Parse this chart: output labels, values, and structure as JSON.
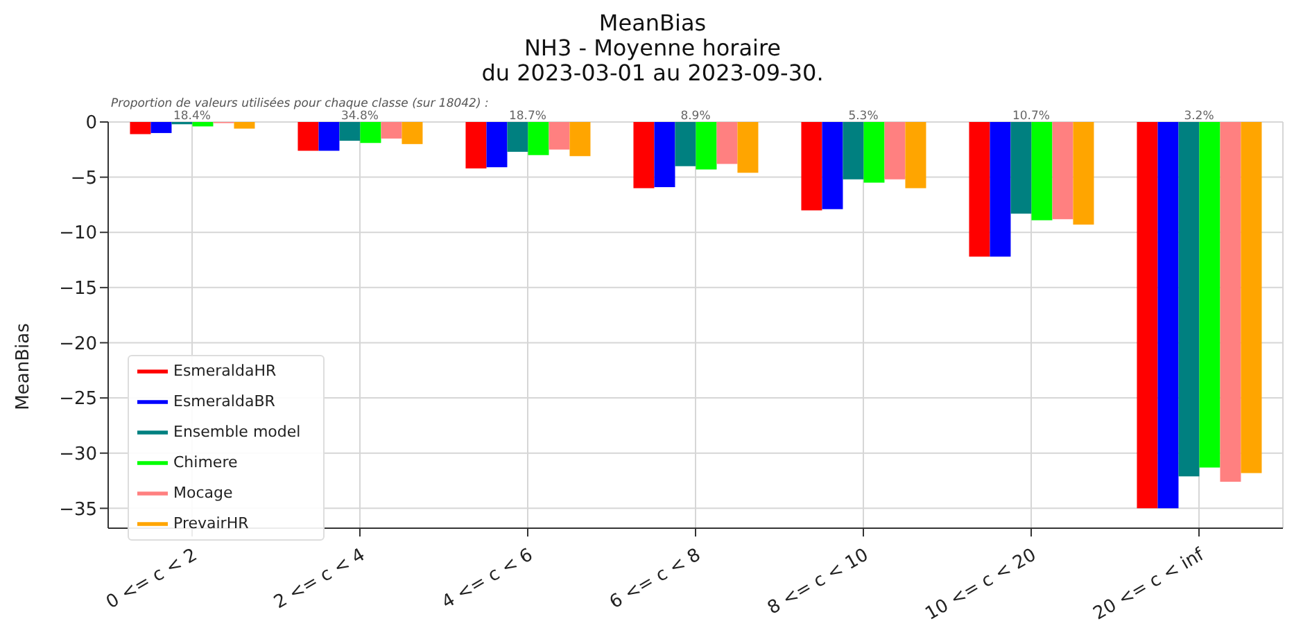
{
  "chart_data": {
    "type": "bar",
    "title": "MeanBias",
    "subtitle": "NH3 - Moyenne horaire\ndu 2023-03-01 au 2023-09-30.",
    "ylabel": "MeanBias",
    "categories": [
      "0 <= c < 2",
      "2 <= c < 4",
      "4 <= c < 6",
      "6 <= c < 8",
      "8 <= c < 10",
      "10 <= c < 20",
      "20 <= c < inf"
    ],
    "series": [
      {
        "name": "EsmeraldaHR",
        "color": "#ff0000",
        "values": [
          -1.1,
          -2.6,
          -4.2,
          -6.0,
          -8.0,
          -12.2,
          -35.0
        ]
      },
      {
        "name": "EsmeraldaBR",
        "color": "#0000ff",
        "values": [
          -1.0,
          -2.6,
          -4.1,
          -5.9,
          -7.9,
          -12.2,
          -35.0
        ]
      },
      {
        "name": "Ensemble model",
        "color": "#008080",
        "values": [
          -0.2,
          -1.7,
          -2.7,
          -4.0,
          -5.2,
          -8.3,
          -32.1
        ]
      },
      {
        "name": "Chimere",
        "color": "#00ff00",
        "values": [
          -0.4,
          -1.9,
          -3.0,
          -4.3,
          -5.5,
          -8.9,
          -31.3
        ]
      },
      {
        "name": "Mocage",
        "color": "#ff8080",
        "values": [
          -0.1,
          -1.5,
          -2.5,
          -3.8,
          -5.2,
          -8.8,
          -32.6
        ]
      },
      {
        "name": "PrevairHR",
        "color": "#ffa500",
        "values": [
          -0.6,
          -2.0,
          -3.1,
          -4.6,
          -6.0,
          -9.3,
          -31.8
        ]
      }
    ],
    "ylim": [
      -36.8,
      0
    ],
    "yticks": [
      0,
      -5,
      -10,
      -15,
      -20,
      -25,
      -30,
      -35
    ],
    "grid": true,
    "legend": "bottom left",
    "annotations": [
      "Proportion de valeurs utilisées pour chaque classe (sur 18042) :",
      {
        "text": "18.4%",
        "x": "0 <= c < 2",
        "y": 0
      },
      {
        "text": "34.8%",
        "x": "2 <= c < 4",
        "y": 0
      },
      {
        "text": "18.7%",
        "x": "4 <= c < 6",
        "y": 0
      },
      {
        "text": "8.9%",
        "x": "6 <= c < 8",
        "y": 0
      },
      {
        "text": "5.3%",
        "x": "8 <= c < 10",
        "y": 0
      },
      {
        "text": "10.7%",
        "x": "10 <= c < 20",
        "y": 0
      },
      {
        "text": "3.2%",
        "x": "20 <= c < inf",
        "y": 0
      }
    ]
  }
}
